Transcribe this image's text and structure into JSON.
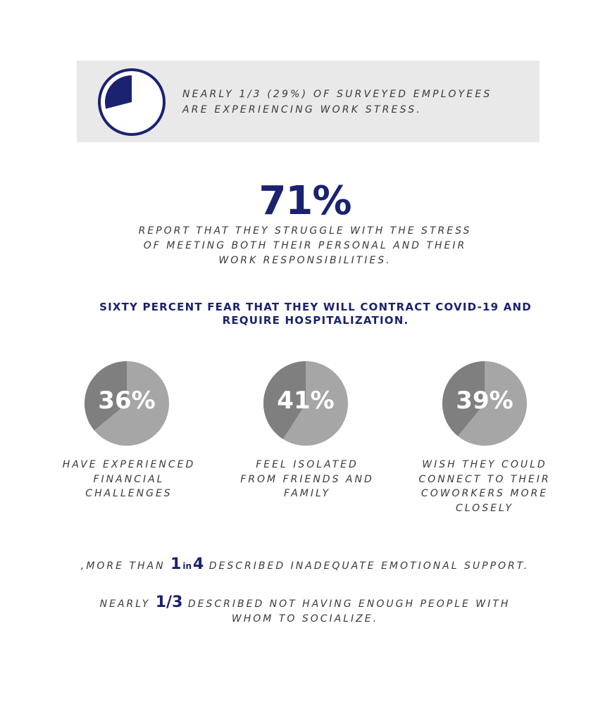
{
  "banner": {
    "pie_fraction": 0.29,
    "text": "Nearly 1/3 (29%) of surveyed employees are experiencing work stress."
  },
  "stat": {
    "value": "71%",
    "description": "report that they struggle with the stress of meeting both their personal and their work responsibilities."
  },
  "headline": "Sixty percent fear that they will contract COVID-19 and require hospitalization.",
  "pies": [
    {
      "label": "36%",
      "fraction": 0.36,
      "caption": "have experienced financial challenges"
    },
    {
      "label": "41%",
      "fraction": 0.41,
      "caption": "feel isolated from friends and family"
    },
    {
      "label": "39%",
      "fraction": 0.39,
      "caption": "wish they could connect to their coworkers more closely"
    }
  ],
  "line1": {
    "prefix": ",more than",
    "num1": "1",
    "in": "in",
    "num2": "4",
    "suffix": "described inadequate emotional support."
  },
  "line2": {
    "prefix": "nearly",
    "num": "1/3",
    "suffix": "described not having enough people with whom to socialize."
  },
  "colors": {
    "navy": "#1b2270",
    "pie_light": "#a6a6a6",
    "pie_dark": "#7f7f7f",
    "banner_bg": "#e9e9e9"
  }
}
